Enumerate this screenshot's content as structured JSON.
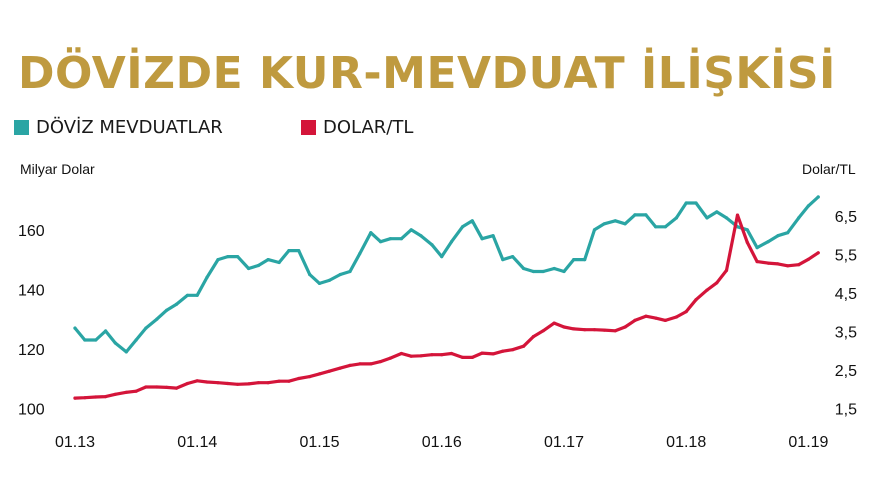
{
  "title": "DÖVİZDE KUR-MEVDUAT İLİŞKİSİ",
  "legend": [
    {
      "label": "DÖVİZ MEVDUATLAR",
      "color": "#2aa5a4"
    },
    {
      "label": "DOLAR/TL",
      "color": "#d4153a"
    }
  ],
  "colors": {
    "title": "#bf9a3f",
    "deposits": "#2aa5a4",
    "usdtry": "#d4153a"
  },
  "chart_data": {
    "type": "line",
    "title": "DÖVİZDE KUR-MEVDUAT İLİŞKİSİ",
    "xlabel": "",
    "ylabel_left": "Milyar Dolar",
    "ylabel_right": "Dolar/TL",
    "x_ticks": [
      "01.13",
      "01.14",
      "01.15",
      "01.16",
      "01.17",
      "01.18",
      "01.19"
    ],
    "y_left_ticks": [
      "100",
      "120",
      "140",
      "160"
    ],
    "y_left_tick_values": [
      100,
      120,
      140,
      160
    ],
    "y_left_lim": [
      100,
      171
    ],
    "y_right_ticks": [
      "1,5",
      "2,5",
      "3,5",
      "4,5",
      "5,5",
      "6,5"
    ],
    "y_right_tick_values": [
      1.5,
      2.5,
      3.5,
      4.5,
      5.5,
      6.5
    ],
    "y_right_lim": [
      1.5,
      7.0
    ],
    "grid": false,
    "legend_position": "top-left",
    "series": [
      {
        "name": "DÖVİZ MEVDUATLAR",
        "axis": "left",
        "x": [
          2013.0,
          2013.08,
          2013.17,
          2013.25,
          2013.33,
          2013.42,
          2013.5,
          2013.58,
          2013.67,
          2013.75,
          2013.83,
          2013.92,
          2014.0,
          2014.08,
          2014.17,
          2014.25,
          2014.33,
          2014.42,
          2014.5,
          2014.58,
          2014.67,
          2014.75,
          2014.83,
          2014.92,
          2015.0,
          2015.08,
          2015.17,
          2015.25,
          2015.33,
          2015.42,
          2015.5,
          2015.58,
          2015.67,
          2015.75,
          2015.83,
          2015.92,
          2016.0,
          2016.08,
          2016.17,
          2016.25,
          2016.33,
          2016.42,
          2016.5,
          2016.58,
          2016.67,
          2016.75,
          2016.83,
          2016.92,
          2017.0,
          2017.08,
          2017.17,
          2017.25,
          2017.33,
          2017.42,
          2017.5,
          2017.58,
          2017.67,
          2017.75,
          2017.83,
          2017.92,
          2018.0,
          2018.08,
          2018.17,
          2018.25,
          2018.33,
          2018.42,
          2018.5,
          2018.58,
          2018.67,
          2018.75,
          2018.83,
          2018.92,
          2019.0,
          2019.08
        ],
        "values": [
          127,
          123,
          123,
          126,
          122,
          119,
          123,
          127,
          130,
          133,
          135,
          138,
          138,
          144,
          150,
          151,
          151,
          147,
          148,
          150,
          149,
          153,
          153,
          145,
          142,
          143,
          145,
          146,
          152,
          159,
          156,
          157,
          157,
          160,
          158,
          155,
          151,
          156,
          161,
          163,
          157,
          158,
          150,
          151,
          147,
          146,
          146,
          147,
          146,
          150,
          150,
          160,
          162,
          163,
          162,
          165,
          165,
          161,
          161,
          164,
          169,
          169,
          164,
          166,
          164,
          161,
          160,
          154,
          156,
          158,
          159,
          164,
          168,
          171
        ]
      },
      {
        "name": "DOLAR/TL",
        "axis": "right",
        "x": [
          2013.0,
          2013.08,
          2013.17,
          2013.25,
          2013.33,
          2013.42,
          2013.5,
          2013.58,
          2013.67,
          2013.75,
          2013.83,
          2013.92,
          2014.0,
          2014.08,
          2014.17,
          2014.25,
          2014.33,
          2014.42,
          2014.5,
          2014.58,
          2014.67,
          2014.75,
          2014.83,
          2014.92,
          2015.0,
          2015.08,
          2015.17,
          2015.25,
          2015.33,
          2015.42,
          2015.5,
          2015.58,
          2015.67,
          2015.75,
          2015.83,
          2015.92,
          2016.0,
          2016.08,
          2016.17,
          2016.25,
          2016.33,
          2016.42,
          2016.5,
          2016.58,
          2016.67,
          2016.75,
          2016.83,
          2016.92,
          2017.0,
          2017.08,
          2017.17,
          2017.25,
          2017.33,
          2017.42,
          2017.5,
          2017.58,
          2017.67,
          2017.75,
          2017.83,
          2017.92,
          2018.0,
          2018.08,
          2018.17,
          2018.25,
          2018.33,
          2018.42,
          2018.5,
          2018.58,
          2018.67,
          2018.75,
          2018.83,
          2018.92,
          2019.0,
          2019.08
        ],
        "values": [
          1.77,
          1.78,
          1.8,
          1.81,
          1.87,
          1.92,
          1.95,
          2.06,
          2.06,
          2.05,
          2.03,
          2.15,
          2.22,
          2.19,
          2.17,
          2.15,
          2.13,
          2.14,
          2.17,
          2.17,
          2.21,
          2.21,
          2.28,
          2.33,
          2.4,
          2.47,
          2.55,
          2.62,
          2.66,
          2.66,
          2.72,
          2.81,
          2.93,
          2.86,
          2.87,
          2.9,
          2.9,
          2.93,
          2.83,
          2.83,
          2.94,
          2.92,
          2.99,
          3.03,
          3.12,
          3.37,
          3.52,
          3.72,
          3.62,
          3.57,
          3.55,
          3.55,
          3.54,
          3.52,
          3.62,
          3.79,
          3.9,
          3.85,
          3.79,
          3.88,
          4.02,
          4.33,
          4.58,
          4.77,
          5.09,
          6.53,
          5.82,
          5.32,
          5.28,
          5.26,
          5.21,
          5.24,
          5.38,
          5.55
        ]
      }
    ]
  }
}
